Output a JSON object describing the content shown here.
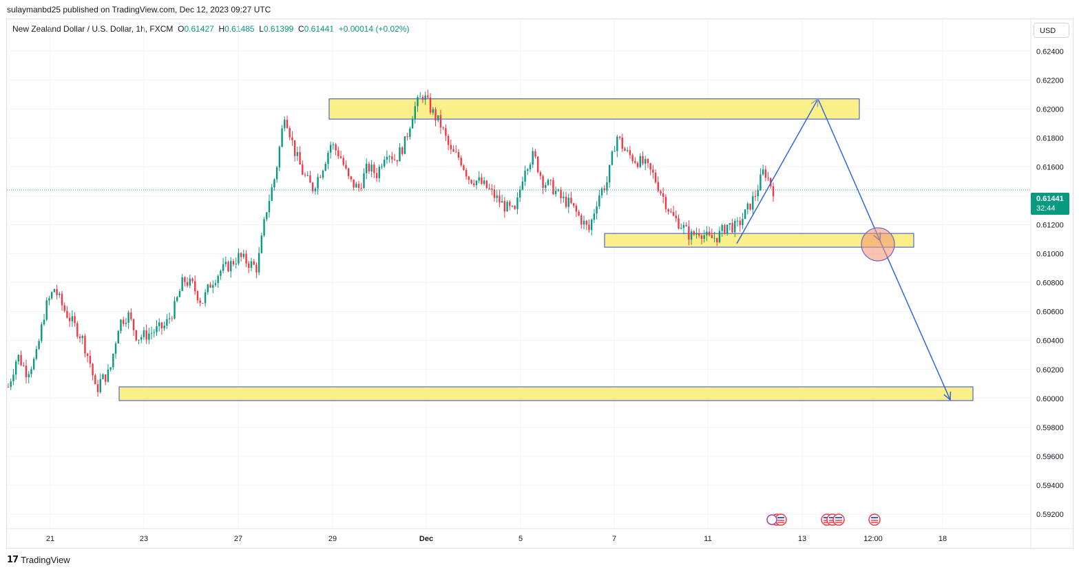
{
  "publisher_line": "sulaymanbd25 published on TradingView.com, Dec 12, 2023 09:27 UTC",
  "symbol": {
    "name": "New Zealand Dollar / U.S. Dollar, 1h, FXCM",
    "open_label": "O",
    "open": "0.61427",
    "high_label": "H",
    "high": "0.61485",
    "low_label": "L",
    "low": "0.61399",
    "close_label": "C",
    "close": "0.61441",
    "change": "+0.00014 (+0.02%)"
  },
  "currency_button": "USD",
  "price_tag": {
    "price": "0.61441",
    "countdown": "32:44"
  },
  "brand": "TradingView",
  "colors": {
    "up": "#089981",
    "down": "#f23645",
    "zone_fill": "#fbef8a",
    "zone_border": "#2a4bcf",
    "arrow": "#2f63e0"
  },
  "chart_data": {
    "type": "candlestick",
    "symbol": "NZDUSD",
    "timeframe": "1h",
    "ylim": [
      0.591,
      0.6262
    ],
    "y_ticks": [
      "0.62400",
      "0.62200",
      "0.62000",
      "0.61800",
      "0.61600",
      "0.61400",
      "0.61200",
      "0.61000",
      "0.60800",
      "0.60600",
      "0.60400",
      "0.60200",
      "0.60000",
      "0.59800",
      "0.59600",
      "0.59400",
      "0.59200"
    ],
    "x_ticks": [
      "21",
      "23",
      "27",
      "29",
      "Dec",
      "5",
      "7",
      "11",
      "13",
      "12:00",
      "18"
    ],
    "last_price": 0.61441,
    "approx_close_path": [
      [
        0,
        0.6008
      ],
      [
        2,
        0.603
      ],
      [
        4,
        0.6018
      ],
      [
        6,
        0.6028
      ],
      [
        8,
        0.6062
      ],
      [
        10,
        0.6076
      ],
      [
        12,
        0.6062
      ],
      [
        14,
        0.6052
      ],
      [
        16,
        0.6042
      ],
      [
        18,
        0.6022
      ],
      [
        19,
        0.6004
      ],
      [
        20,
        0.6012
      ],
      [
        22,
        0.6018
      ],
      [
        24,
        0.6052
      ],
      [
        26,
        0.6058
      ],
      [
        28,
        0.6042
      ],
      [
        30,
        0.6044
      ],
      [
        32,
        0.6047
      ],
      [
        34,
        0.605
      ],
      [
        36,
        0.6062
      ],
      [
        38,
        0.6082
      ],
      [
        40,
        0.6078
      ],
      [
        42,
        0.6066
      ],
      [
        44,
        0.608
      ],
      [
        46,
        0.6088
      ],
      [
        48,
        0.6092
      ],
      [
        50,
        0.6098
      ],
      [
        52,
        0.6094
      ],
      [
        54,
        0.609
      ],
      [
        56,
        0.613
      ],
      [
        58,
        0.6155
      ],
      [
        60,
        0.6198
      ],
      [
        62,
        0.6172
      ],
      [
        64,
        0.6155
      ],
      [
        66,
        0.6145
      ],
      [
        68,
        0.6158
      ],
      [
        70,
        0.6176
      ],
      [
        72,
        0.6168
      ],
      [
        74,
        0.615
      ],
      [
        76,
        0.6145
      ],
      [
        78,
        0.616
      ],
      [
        80,
        0.6155
      ],
      [
        82,
        0.6172
      ],
      [
        84,
        0.6165
      ],
      [
        86,
        0.6176
      ],
      [
        88,
        0.62
      ],
      [
        90,
        0.621
      ],
      [
        92,
        0.6198
      ],
      [
        94,
        0.6188
      ],
      [
        96,
        0.617
      ],
      [
        98,
        0.6166
      ],
      [
        100,
        0.6152
      ],
      [
        102,
        0.615
      ],
      [
        104,
        0.6145
      ],
      [
        106,
        0.6138
      ],
      [
        108,
        0.6132
      ],
      [
        110,
        0.6128
      ],
      [
        112,
        0.616
      ],
      [
        114,
        0.6168
      ],
      [
        116,
        0.615
      ],
      [
        118,
        0.6146
      ],
      [
        120,
        0.6138
      ],
      [
        122,
        0.6134
      ],
      [
        124,
        0.6125
      ],
      [
        126,
        0.6116
      ],
      [
        128,
        0.614
      ],
      [
        130,
        0.615
      ],
      [
        132,
        0.6182
      ],
      [
        134,
        0.617
      ],
      [
        136,
        0.6165
      ],
      [
        138,
        0.6162
      ],
      [
        140,
        0.6154
      ],
      [
        142,
        0.614
      ],
      [
        144,
        0.6126
      ],
      [
        146,
        0.612
      ],
      [
        148,
        0.6112
      ],
      [
        150,
        0.6116
      ],
      [
        152,
        0.611
      ],
      [
        154,
        0.6112
      ],
      [
        156,
        0.612
      ],
      [
        158,
        0.6118
      ],
      [
        160,
        0.6128
      ],
      [
        162,
        0.614
      ],
      [
        164,
        0.6158
      ],
      [
        166,
        0.6144
      ]
    ]
  },
  "drawings": {
    "zones": [
      {
        "name": "resistance-zone",
        "y_top": 0.6207,
        "y_bottom": 0.6193
      },
      {
        "name": "support-zone",
        "y_top": 0.6114,
        "y_bottom": 0.61045
      },
      {
        "name": "target-zone",
        "y_top": 0.6008,
        "y_bottom": 0.59985
      }
    ],
    "projection_prices": [
      0.6107,
      0.6207,
      0.6109,
      0.5999
    ]
  }
}
